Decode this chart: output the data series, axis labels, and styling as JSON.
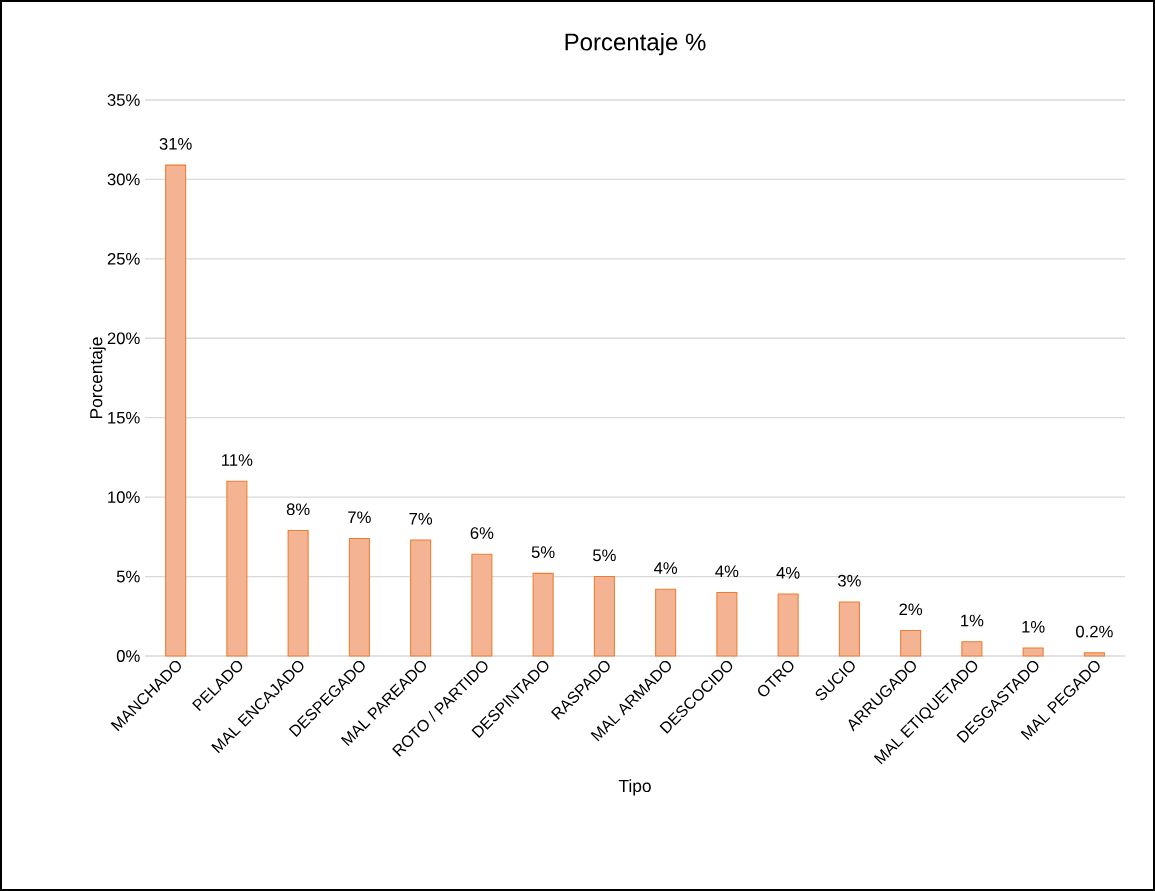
{
  "chart_data": {
    "type": "bar",
    "title": "Porcentaje %",
    "xlabel": "Tipo",
    "ylabel": "Porcentaje",
    "categories": [
      "MANCHADO",
      "PELADO",
      "MAL ENCAJADO",
      "DESPEGADO",
      "MAL PAREADO",
      "ROTO / PARTIDO",
      "DESPINTADO",
      "RASPADO",
      "MAL ARMADO",
      "DESCOCIDO",
      "OTRO",
      "SUCIO",
      "ARRUGADO",
      "MAL ETIQUETADO",
      "DESGASTADO",
      "MAL PEGADO"
    ],
    "values": [
      30.9,
      11.0,
      7.9,
      7.4,
      7.3,
      6.4,
      5.2,
      5.0,
      4.2,
      4.0,
      3.9,
      3.4,
      1.6,
      0.9,
      0.5,
      0.2
    ],
    "value_labels": [
      "31%",
      "11%",
      "8%",
      "7%",
      "7%",
      "6%",
      "5%",
      "5%",
      "4%",
      "4%",
      "4%",
      "3%",
      "2%",
      "1%",
      "1%",
      "0.2%"
    ],
    "color": "#f4b494",
    "ylim": [
      0,
      35
    ],
    "yticks": [
      {
        "value": 0,
        "label": "0%"
      },
      {
        "value": 5,
        "label": "5%"
      },
      {
        "value": 10,
        "label": "10%"
      },
      {
        "value": 15,
        "label": "15%"
      },
      {
        "value": 20,
        "label": "20%"
      },
      {
        "value": 25,
        "label": "25%"
      },
      {
        "value": 30,
        "label": "30%"
      },
      {
        "value": 35,
        "label": "35%"
      }
    ],
    "grid": "y"
  }
}
